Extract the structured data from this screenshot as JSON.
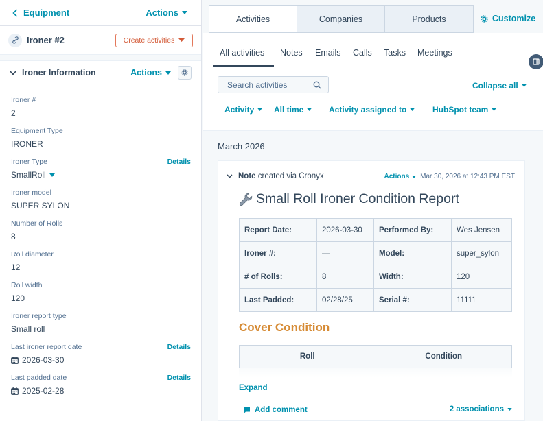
{
  "colors": {
    "link": "#0091ae",
    "text": "#33475b",
    "muted": "#516f90",
    "create": "#d35a37",
    "cover": "#d68b35"
  },
  "left_panel": {
    "back_label": "Equipment",
    "actions_label": "Actions",
    "record_title": "Ironer #2",
    "create_activities_label": "Create activities",
    "section_title": "Ironer Information",
    "section_actions_label": "Actions",
    "properties": [
      {
        "label": "Ironer #",
        "value": "2"
      },
      {
        "label": "Equipment Type",
        "value": "IRONER"
      },
      {
        "label": "Ironer Type",
        "value": "SmallRoll",
        "details": "Details"
      },
      {
        "label": "Ironer model",
        "value": "SUPER SYLON"
      },
      {
        "label": "Number of Rolls",
        "value": "8"
      },
      {
        "label": "Roll diameter",
        "value": "12"
      },
      {
        "label": "Roll width",
        "value": "120"
      },
      {
        "label": "Ironer report type",
        "value": "Small roll"
      },
      {
        "label": "Last ironer report date",
        "value": "2026-03-30",
        "details": "Details"
      },
      {
        "label": "Last padded date",
        "value": "2025-02-28",
        "details": "Details"
      }
    ]
  },
  "right_panel": {
    "top_tabs": [
      "Activities",
      "Companies",
      "Products"
    ],
    "customize_label": "Customize",
    "sub_tabs": [
      "All activities",
      "Notes",
      "Emails",
      "Calls",
      "Tasks",
      "Meetings"
    ],
    "search_placeholder": "Search activities",
    "collapse_all_label": "Collapse all",
    "filters": [
      "Activity",
      "All time",
      "Activity assigned to",
      "HubSpot team"
    ],
    "month_label": "March 2026",
    "note": {
      "type": "Note",
      "via_text": "created via Cronyx",
      "actions_label": "Actions",
      "timestamp": "Mar 30, 2026 at 12:43 PM EST",
      "title_icon": "wrench-icon",
      "title": "Small Roll Ironer Condition Report",
      "table": [
        [
          "Report Date:",
          "2026-03-30",
          "Performed By:",
          "Wes Jensen"
        ],
        [
          "Ironer #:",
          "—",
          "Model:",
          "super_sylon"
        ],
        [
          "# of Rolls:",
          "8",
          "Width:",
          "120"
        ],
        [
          "Last Padded:",
          "02/28/25",
          "Serial #:",
          "11111"
        ]
      ],
      "cover_heading": "Cover Condition",
      "cover_columns": [
        "Roll",
        "Condition"
      ],
      "expand_label": "Expand",
      "add_comment_label": "Add comment",
      "associations_label": "2 associations"
    }
  }
}
